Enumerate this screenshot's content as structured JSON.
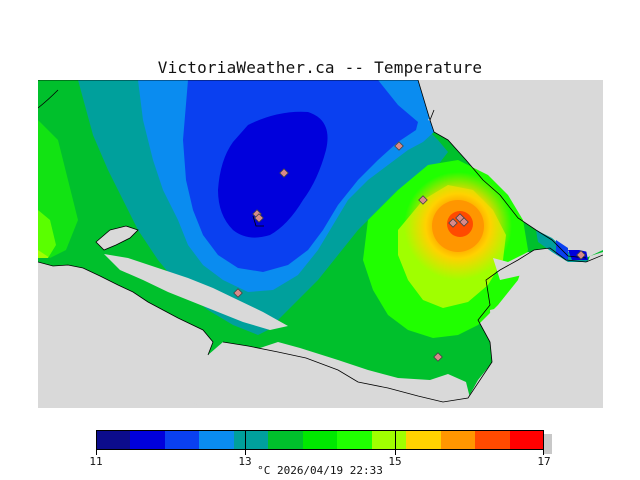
{
  "title": "VictoriaWeather.ca -- Temperature",
  "caption": "°C  2026/04/19 22:33",
  "colorbar": {
    "min": 11,
    "max": 17,
    "labels": [
      "11",
      "13",
      "15",
      "17"
    ],
    "label_values": [
      11,
      13,
      15,
      17
    ],
    "colors": [
      "#0c0c8c",
      "#0000dc",
      "#0a40f0",
      "#0a8cf0",
      "#00a09c",
      "#00c02c",
      "#00e800",
      "#20ff00",
      "#a0ff00",
      "#ffd200",
      "#ff9600",
      "#ff4a00",
      "#ff0000"
    ]
  },
  "map": {
    "background": "#d9d9d9",
    "station_count": 12
  }
}
